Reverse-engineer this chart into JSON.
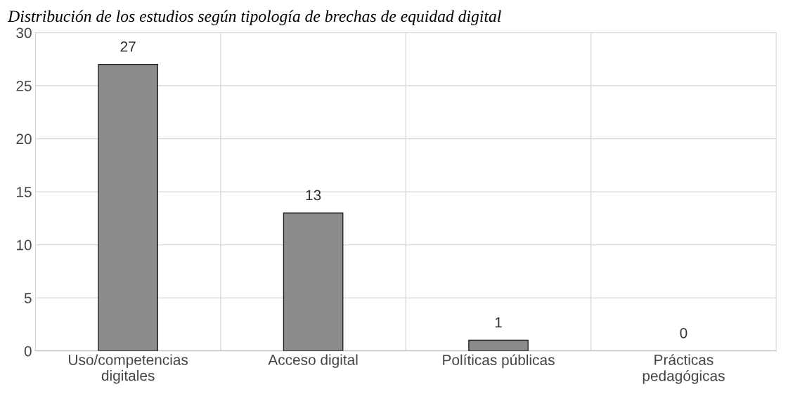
{
  "chart_data": {
    "type": "bar",
    "title": "Distribución de los estudios según tipología de brechas de equidad digital",
    "categories": [
      "Uso/competencias\ndigitales",
      "Acceso digital",
      "Políticas públicas",
      "Prácticas\npedagógicas"
    ],
    "values": [
      27,
      13,
      1,
      0
    ],
    "color": "#8c8c8c",
    "ylim": [
      0,
      30
    ],
    "yticks": [
      0,
      5,
      10,
      15,
      20,
      25,
      30
    ],
    "grid": true,
    "data_labels": true
  }
}
